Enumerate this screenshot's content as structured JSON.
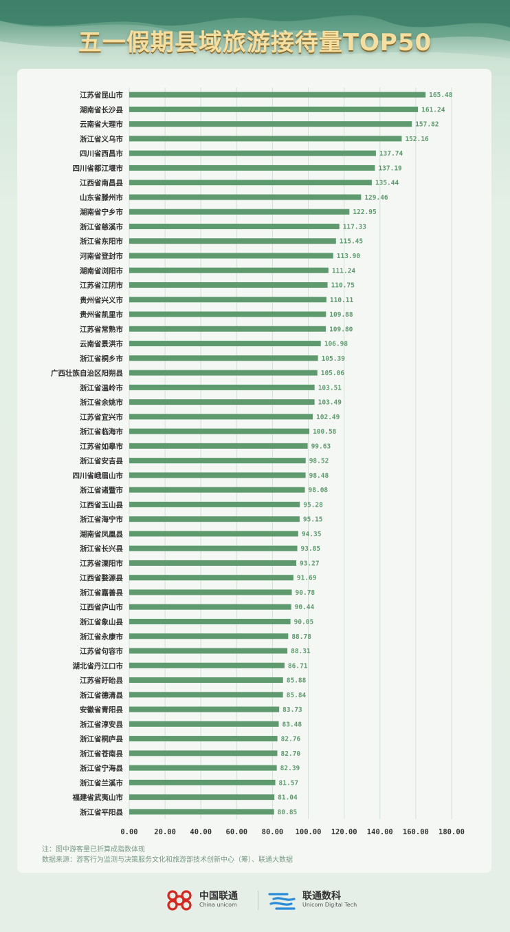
{
  "title": "五一假期县域旅游接待量TOP50",
  "notes": {
    "note": "注：图中游客量已折算成指数体现",
    "source": "数据来源：游客行为监测与决策服务文化和旅游部技术创新中心（筹）、联通大数据"
  },
  "logos": {
    "china_unicom_name": "中国联通",
    "china_unicom_sub": "China unicom",
    "digital_tech_name": "联通数科",
    "digital_tech_sub": "Unicom Digital Tech"
  },
  "colors": {
    "bar": "#5e9a6e",
    "value_label": "#5e9a6e",
    "tick": "#333333",
    "category": "#333333",
    "gridline": "#d6e0d8",
    "title": "#f4dfa0"
  },
  "chart_data": {
    "type": "bar",
    "orientation": "horizontal",
    "title": "五一假期县域旅游接待量TOP50",
    "xlabel": "",
    "ylabel": "",
    "xlim": [
      0,
      180
    ],
    "xticks": [
      "0.00",
      "20.00",
      "40.00",
      "60.00",
      "80.00",
      "100.00",
      "120.00",
      "140.00",
      "160.00",
      "180.00"
    ],
    "grid": true,
    "categories": [
      "江苏省昆山市",
      "湖南省长沙县",
      "云南省大理市",
      "浙江省义乌市",
      "四川省西昌市",
      "四川省都江堰市",
      "江西省南昌县",
      "山东省滕州市",
      "湖南省宁乡市",
      "浙江省慈溪市",
      "浙江省东阳市",
      "河南省登封市",
      "湖南省浏阳市",
      "江苏省江阴市",
      "贵州省兴义市",
      "贵州省凯里市",
      "江苏省常熟市",
      "云南省景洪市",
      "浙江省桐乡市",
      "广西壮族自治区阳朔县",
      "浙江省温岭市",
      "浙江省余姚市",
      "江苏省宜兴市",
      "浙江省临海市",
      "江苏省如皋市",
      "浙江省安吉县",
      "四川省峨眉山市",
      "浙江省诸暨市",
      "江西省玉山县",
      "浙江省海宁市",
      "湖南省凤凰县",
      "浙江省长兴县",
      "江苏省溧阳市",
      "江西省婺源县",
      "浙江省嘉善县",
      "江西省庐山市",
      "浙江省象山县",
      "浙江省永康市",
      "江苏省句容市",
      "湖北省丹江口市",
      "江苏省盱眙县",
      "浙江省德清县",
      "安徽省青阳县",
      "浙江省淳安县",
      "浙江省桐庐县",
      "浙江省苍南县",
      "浙江省宁海县",
      "浙江省兰溪市",
      "福建省武夷山市",
      "浙江省平阳县"
    ],
    "values": [
      165.48,
      161.24,
      157.82,
      152.16,
      137.74,
      137.19,
      135.44,
      129.46,
      122.95,
      117.33,
      115.45,
      113.9,
      111.24,
      110.75,
      110.11,
      109.88,
      109.8,
      106.98,
      105.39,
      105.06,
      103.51,
      103.49,
      102.49,
      100.58,
      99.63,
      98.52,
      98.48,
      98.08,
      95.28,
      95.15,
      94.35,
      93.85,
      93.27,
      91.69,
      90.78,
      90.44,
      90.05,
      88.78,
      88.31,
      86.71,
      85.88,
      85.84,
      83.73,
      83.48,
      82.76,
      82.7,
      82.39,
      81.57,
      81.04,
      80.85
    ],
    "value_labels": [
      "165.48",
      "161.24",
      "157.82",
      "152.16",
      "137.74",
      "137.19",
      "135.44",
      "129.46",
      "122.95",
      "117.33",
      "115.45",
      "113.90",
      "111.24",
      "110.75",
      "110.11",
      "109.88",
      "109.80",
      "106.98",
      "105.39",
      "105.06",
      "103.51",
      "103.49",
      "102.49",
      "100.58",
      "99.63",
      "98.52",
      "98.48",
      "98.08",
      "95.28",
      "95.15",
      "94.35",
      "93.85",
      "93.27",
      "91.69",
      "90.78",
      "90.44",
      "90.05",
      "88.78",
      "88.31",
      "86.71",
      "85.88",
      "85.84",
      "83.73",
      "83.48",
      "82.76",
      "82.70",
      "82.39",
      "81.57",
      "81.04",
      "80.85"
    ]
  }
}
